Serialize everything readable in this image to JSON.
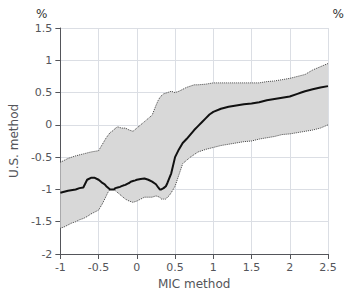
{
  "chart_data": {
    "type": "line",
    "xlabel": "MIC method",
    "ylabel": "U.S. method",
    "annotations": [
      "%",
      "%"
    ],
    "xlim": [
      -1.0,
      2.5
    ],
    "ylim": [
      -2.0,
      1.5
    ],
    "xticks": [
      -1.0,
      -0.5,
      0.0,
      0.5,
      1.0,
      1.5,
      2.0,
      2.5
    ],
    "yticks": [
      -2.0,
      -1.5,
      -1.0,
      -0.5,
      0.0,
      0.5,
      1.0,
      1.5
    ],
    "grid": true,
    "band": {
      "color": "#d8d8d8"
    },
    "series": [
      {
        "type": "line",
        "line_style": "dotted",
        "color": "#444444",
        "x": [
          -1.0,
          -0.9,
          -0.8,
          -0.7,
          -0.6,
          -0.5,
          -0.45,
          -0.4,
          -0.35,
          -0.3,
          -0.28,
          -0.25,
          -0.2,
          -0.15,
          -0.1,
          -0.05,
          0.0,
          0.05,
          0.1,
          0.15,
          0.2,
          0.25,
          0.28,
          0.3,
          0.32,
          0.35,
          0.4,
          0.45,
          0.5,
          0.55,
          0.6,
          0.65,
          0.7,
          0.75,
          0.8,
          0.9,
          1.0,
          1.1,
          1.2,
          1.3,
          1.4,
          1.5,
          1.6,
          1.7,
          1.8,
          1.9,
          2.0,
          2.1,
          2.2,
          2.3,
          2.4,
          2.5
        ],
        "values": [
          -0.58,
          -0.52,
          -0.48,
          -0.45,
          -0.42,
          -0.4,
          -0.3,
          -0.2,
          -0.12,
          -0.08,
          -0.05,
          -0.03,
          -0.05,
          -0.05,
          -0.08,
          -0.1,
          -0.05,
          0.0,
          0.05,
          0.1,
          0.15,
          0.3,
          0.38,
          0.42,
          0.45,
          0.48,
          0.5,
          0.52,
          0.5,
          0.52,
          0.55,
          0.58,
          0.6,
          0.62,
          0.62,
          0.63,
          0.65,
          0.65,
          0.65,
          0.65,
          0.65,
          0.65,
          0.65,
          0.67,
          0.68,
          0.7,
          0.72,
          0.75,
          0.78,
          0.85,
          0.9,
          0.95
        ]
      },
      {
        "type": "line",
        "line_style": "dotted",
        "color": "#444444",
        "x": [
          -1.0,
          -0.95,
          -0.9,
          -0.85,
          -0.8,
          -0.75,
          -0.7,
          -0.65,
          -0.6,
          -0.55,
          -0.5,
          -0.48,
          -0.45,
          -0.42,
          -0.4,
          -0.38,
          -0.35,
          -0.3,
          -0.28,
          -0.25,
          -0.2,
          -0.15,
          -0.1,
          -0.05,
          0.0,
          0.05,
          0.1,
          0.15,
          0.2,
          0.25,
          0.3,
          0.32,
          0.35,
          0.38,
          0.4,
          0.42,
          0.45,
          0.5,
          0.6,
          0.7,
          0.8,
          0.9,
          1.0,
          1.1,
          1.2,
          1.3,
          1.4,
          1.5,
          1.6,
          1.7,
          1.8,
          1.9,
          2.0,
          2.1,
          2.2,
          2.3,
          2.4,
          2.5
        ],
        "values": [
          -1.6,
          -1.58,
          -1.55,
          -1.52,
          -1.5,
          -1.47,
          -1.45,
          -1.42,
          -1.38,
          -1.35,
          -1.32,
          -1.28,
          -1.22,
          -1.15,
          -1.1,
          -1.05,
          -1.0,
          -1.0,
          -1.02,
          -1.05,
          -1.1,
          -1.15,
          -1.18,
          -1.2,
          -1.18,
          -1.15,
          -1.12,
          -1.12,
          -1.12,
          -1.1,
          -1.12,
          -1.15,
          -1.15,
          -1.15,
          -1.12,
          -1.1,
          -1.05,
          -0.95,
          -0.6,
          -0.5,
          -0.42,
          -0.38,
          -0.35,
          -0.32,
          -0.3,
          -0.28,
          -0.26,
          -0.25,
          -0.22,
          -0.2,
          -0.18,
          -0.15,
          -0.14,
          -0.12,
          -0.1,
          -0.08,
          -0.05,
          0.0
        ]
      },
      {
        "type": "line",
        "line_style": "solid",
        "color": "#111111",
        "x": [
          -1.0,
          -0.9,
          -0.8,
          -0.75,
          -0.7,
          -0.65,
          -0.6,
          -0.55,
          -0.5,
          -0.48,
          -0.45,
          -0.42,
          -0.4,
          -0.38,
          -0.35,
          -0.3,
          -0.28,
          -0.25,
          -0.22,
          -0.2,
          -0.18,
          -0.15,
          -0.12,
          -0.1,
          -0.08,
          -0.05,
          -0.02,
          0.0,
          0.05,
          0.1,
          0.15,
          0.2,
          0.25,
          0.28,
          0.3,
          0.32,
          0.35,
          0.38,
          0.4,
          0.45,
          0.5,
          0.55,
          0.6,
          0.65,
          0.7,
          0.75,
          0.8,
          0.85,
          0.9,
          0.95,
          1.0,
          1.1,
          1.2,
          1.3,
          1.4,
          1.5,
          1.6,
          1.7,
          1.8,
          1.9,
          2.0,
          2.1,
          2.15,
          2.2,
          2.3,
          2.4,
          2.5
        ],
        "values": [
          -1.05,
          -1.02,
          -1.0,
          -0.98,
          -0.97,
          -0.85,
          -0.82,
          -0.82,
          -0.85,
          -0.87,
          -0.9,
          -0.92,
          -0.95,
          -0.97,
          -1.0,
          -1.0,
          -0.98,
          -0.97,
          -0.96,
          -0.95,
          -0.94,
          -0.93,
          -0.91,
          -0.9,
          -0.88,
          -0.87,
          -0.86,
          -0.85,
          -0.84,
          -0.83,
          -0.85,
          -0.88,
          -0.92,
          -0.97,
          -1.0,
          -1.0,
          -0.98,
          -0.95,
          -0.9,
          -0.75,
          -0.5,
          -0.38,
          -0.28,
          -0.22,
          -0.15,
          -0.08,
          -0.02,
          0.04,
          0.1,
          0.16,
          0.2,
          0.25,
          0.28,
          0.3,
          0.32,
          0.33,
          0.35,
          0.38,
          0.4,
          0.42,
          0.44,
          0.48,
          0.5,
          0.52,
          0.55,
          0.58,
          0.6
        ]
      }
    ]
  }
}
